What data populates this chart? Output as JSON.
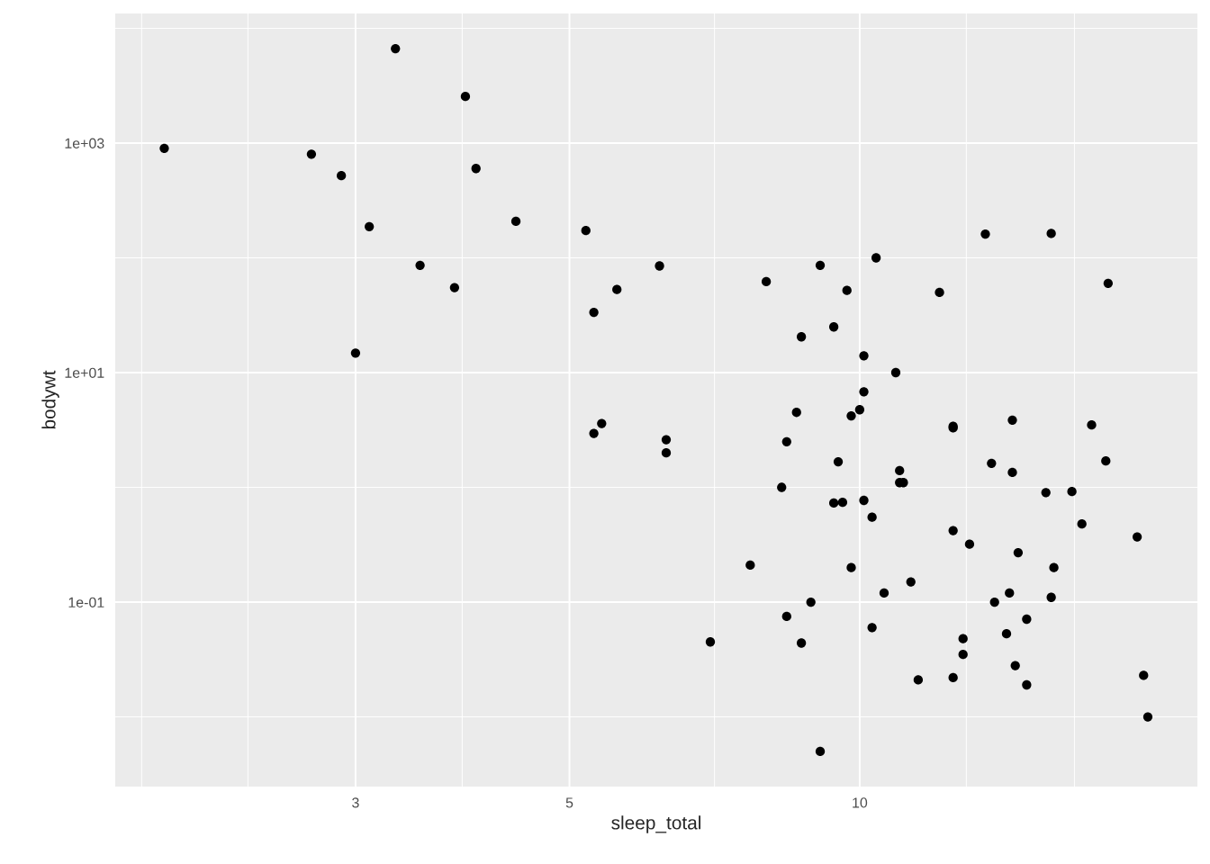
{
  "chart_data": {
    "type": "scatter",
    "xlabel": "sleep_total",
    "ylabel": "bodywt",
    "log": "xy",
    "grid": true,
    "marker": "circle",
    "xlim": [
      1.69,
      22.4
    ],
    "ylim": [
      0.00247,
      13460
    ],
    "xticks": [
      {
        "value": 1.8,
        "label": null
      },
      {
        "value": 2.32,
        "label": null
      },
      3,
      {
        "value": 3.87,
        "label": null
      },
      5,
      {
        "value": 7.07,
        "label": null
      },
      10,
      {
        "value": 12.9,
        "label": null
      },
      {
        "value": 16.7,
        "label": null
      }
    ],
    "yticks": [
      {
        "value": 0.01,
        "label": null
      },
      {
        "value": 0.1,
        "label": "1e-01"
      },
      {
        "value": 1,
        "label": null
      },
      {
        "value": 10,
        "label": "1e+01"
      },
      {
        "value": 100,
        "label": null
      },
      {
        "value": 1000,
        "label": "1e+03"
      },
      {
        "value": 10000,
        "label": null
      }
    ],
    "series": [
      {
        "color": "#000000",
        "x": [
          12.1,
          17.0,
          14.4,
          14.9,
          4.0,
          14.4,
          8.7,
          7.0,
          10.1,
          3.0,
          5.3,
          9.4,
          10.0,
          12.5,
          10.3,
          8.3,
          9.1,
          17.4,
          5.3,
          18.0,
          3.9,
          19.7,
          2.9,
          3.1,
          10.1,
          10.9,
          14.9,
          12.5,
          9.8,
          1.9,
          2.7,
          6.2,
          6.3,
          8.0,
          9.5,
          3.3,
          19.4,
          10.1,
          14.2,
          14.3,
          12.8,
          12.5,
          19.9,
          14.6,
          11.0,
          7.7,
          14.5,
          8.4,
          3.8,
          9.7,
          15.8,
          10.4,
          13.5,
          9.4,
          10.3,
          11.0,
          11.5,
          13.7,
          3.5,
          5.6,
          11.1,
          18.1,
          5.4,
          13.0,
          8.7,
          9.6,
          8.4,
          11.3,
          10.6,
          16.6,
          13.8,
          15.9,
          12.8,
          9.1,
          8.6,
          15.8,
          4.4,
          15.6,
          8.9,
          5.2,
          6.3,
          12.5,
          9.8
        ],
        "values": [
          50,
          0.48,
          1.35,
          0.019,
          600,
          3.85,
          20.5,
          0.045,
          14,
          14.8,
          33.5,
          0.73,
          4.75,
          0.42,
          0.06,
          1.0,
          0.005,
          3.5,
          2.95,
          1.7,
          2550,
          0.023,
          520,
          187,
          0.77,
          10,
          0.071,
          3.3,
          0.2,
          900,
          800,
          85,
          2.6,
          62,
          1.67,
          6650,
          0.37,
          6.8,
          0.053,
          0.12,
          0.035,
          0.022,
          0.01,
          0.27,
          1.4,
          0.21,
          0.028,
          2.5,
          55,
          52,
          163,
          100,
          161,
          25,
          0.55,
          1.1,
          0.021,
          1.62,
          86,
          53,
          1.1,
          60,
          3.6,
          0.32,
          0.044,
          0.74,
          0.075,
          0.15,
          0.12,
          0.92,
          0.1,
          0.2,
          0.048,
          86,
          4.5,
          0.11,
          208,
          0.9,
          0.1,
          173,
          2.0,
          3.4,
          4.2
        ]
      }
    ]
  }
}
